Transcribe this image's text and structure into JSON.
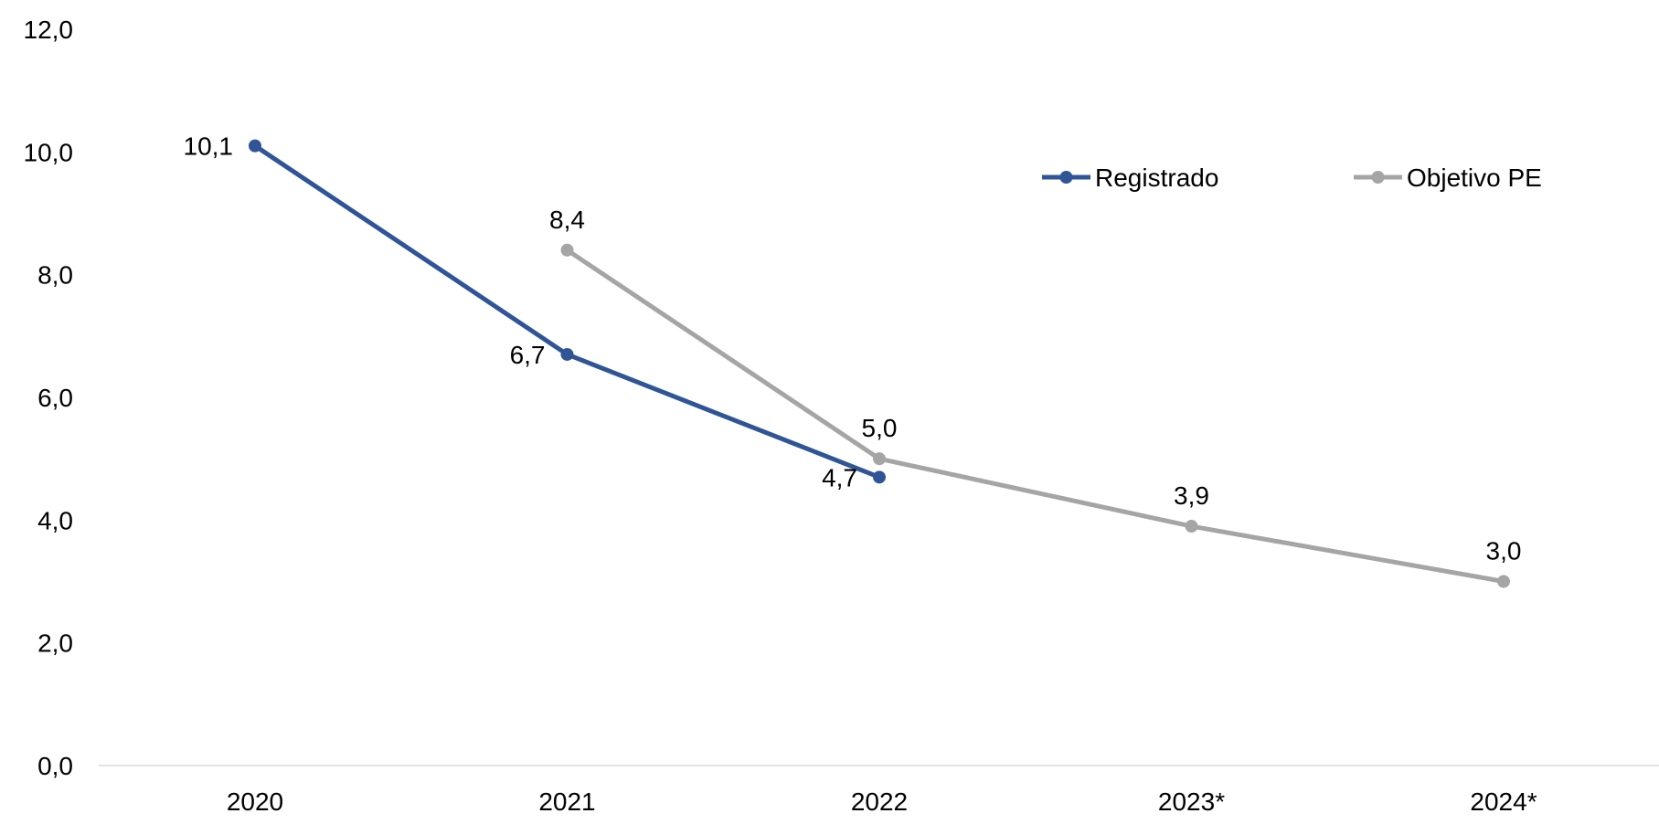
{
  "chart_data": {
    "type": "line",
    "categories": [
      "2020",
      "2021",
      "2022",
      "2023*",
      "2024*"
    ],
    "ylim": [
      0,
      12
    ],
    "y_ticks": [
      "0,0",
      "2,0",
      "4,0",
      "6,0",
      "8,0",
      "10,0",
      "12,0"
    ],
    "grid": false,
    "legend_position": "top-right",
    "series": [
      {
        "name": "Registrado",
        "color": "#2F5597",
        "values": [
          10.1,
          6.7,
          4.7,
          null,
          null
        ],
        "labels": [
          "10,1",
          "6,7",
          "4,7",
          "",
          ""
        ],
        "label_position": "left"
      },
      {
        "name": "Objetivo PE",
        "color": "#A5A5A5",
        "values": [
          null,
          8.4,
          5.0,
          3.9,
          3.0
        ],
        "labels": [
          "",
          "8,4",
          "5,0",
          "3,9",
          "3,0"
        ],
        "label_position": "above"
      }
    ]
  }
}
